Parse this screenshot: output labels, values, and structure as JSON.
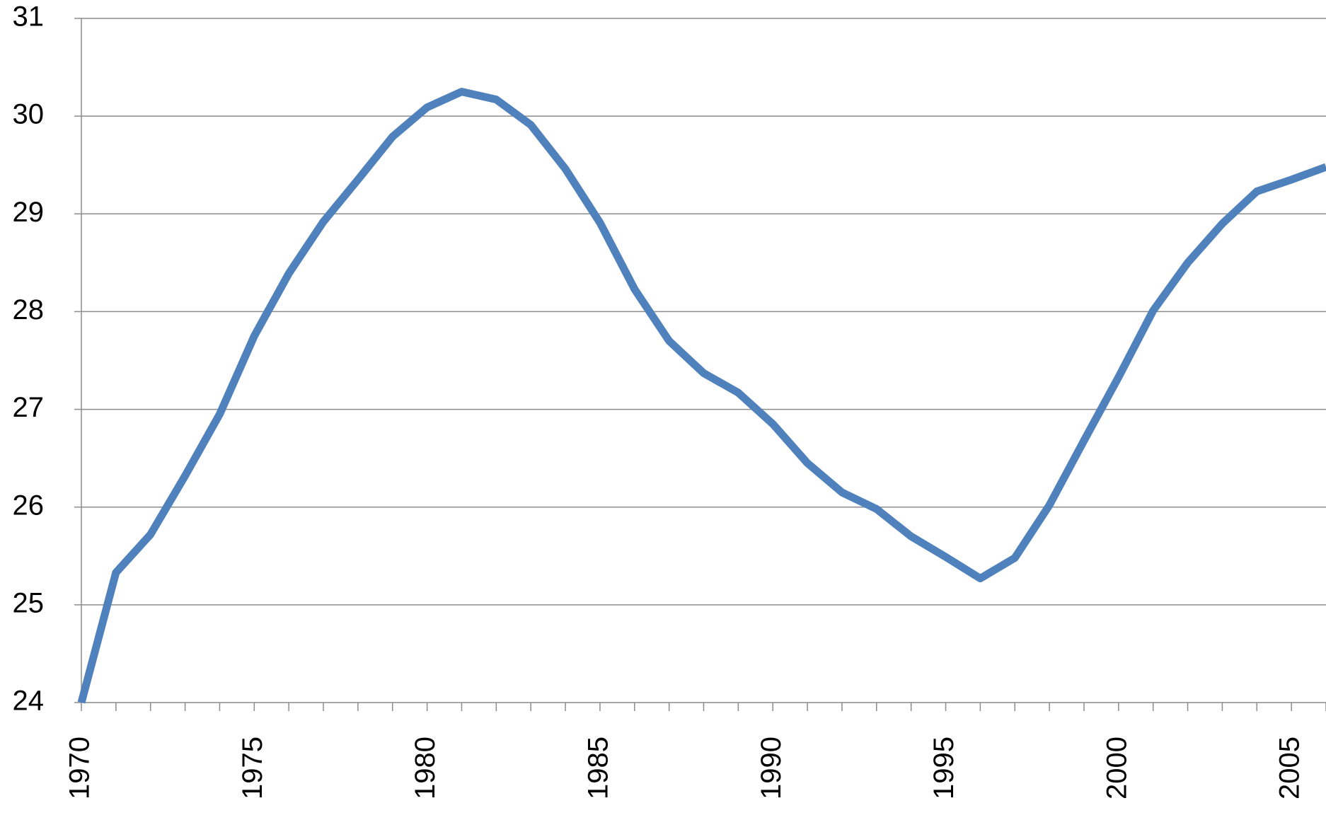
{
  "chart_data": {
    "type": "line",
    "x": [
      1970,
      1971,
      1972,
      1973,
      1974,
      1975,
      1976,
      1977,
      1978,
      1979,
      1980,
      1981,
      1982,
      1983,
      1984,
      1985,
      1986,
      1987,
      1988,
      1989,
      1990,
      1991,
      1992,
      1993,
      1994,
      1995,
      1996,
      1997,
      1998,
      1999,
      2000,
      2001,
      2002,
      2003,
      2004,
      2005,
      2006
    ],
    "series": [
      {
        "color": "#4f81bd",
        "values": [
          24.0,
          25.33,
          25.72,
          26.32,
          26.95,
          27.75,
          28.39,
          28.92,
          29.35,
          29.79,
          30.09,
          30.25,
          30.17,
          29.91,
          29.46,
          28.91,
          28.23,
          27.7,
          27.37,
          27.17,
          26.85,
          26.45,
          26.15,
          25.98,
          25.7,
          25.49,
          25.27,
          25.48,
          26.02,
          26.68,
          27.33,
          28.01,
          28.5,
          28.9,
          29.23,
          29.35,
          29.48
        ]
      }
    ],
    "xlim": [
      1970,
      2006
    ],
    "xticks": [
      1970,
      1975,
      1980,
      1985,
      1990,
      1995,
      2000,
      2005
    ],
    "ylim": [
      24,
      31
    ],
    "yticks": [
      24,
      25,
      26,
      27,
      28,
      29,
      30,
      31
    ],
    "grid": true
  }
}
